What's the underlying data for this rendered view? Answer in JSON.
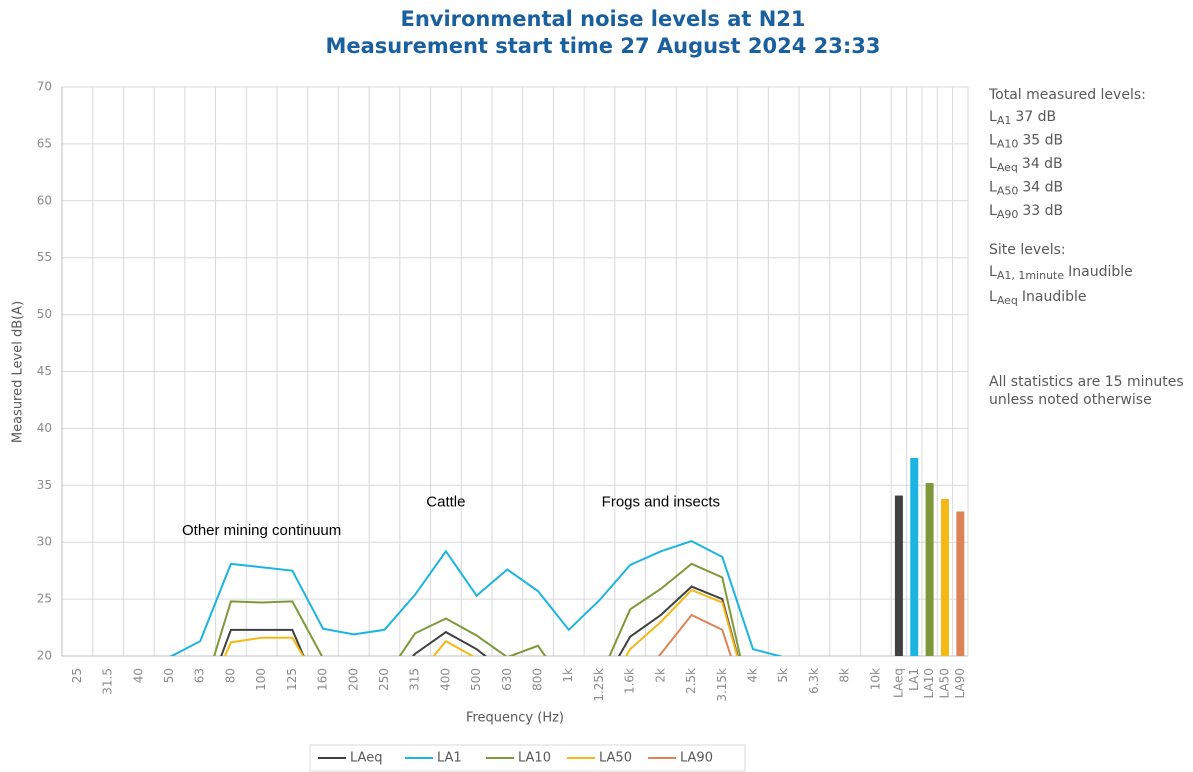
{
  "chart_data": {
    "type": "line",
    "title": [
      "Environmental noise levels at N21",
      "Measurement start time 27 August 2024 23:33"
    ],
    "xlabel": "Frequency (Hz)",
    "ylabel": "Measured Level dB(A)",
    "categories": [
      "25",
      "31.5",
      "40",
      "50",
      "63",
      "80",
      "100",
      "125",
      "160",
      "200",
      "250",
      "315",
      "400",
      "500",
      "630",
      "800",
      "1k",
      "1.25k",
      "1.6k",
      "2k",
      "2.5k",
      "3.15k",
      "4k",
      "5k",
      "6.3k",
      "8k",
      "10k"
    ],
    "ylim": [
      20,
      70
    ],
    "yticks": [
      20,
      25,
      30,
      35,
      40,
      45,
      50,
      55,
      60,
      65,
      70
    ],
    "grid": true,
    "series": [
      {
        "name": "LAeq",
        "color": "#404040",
        "values": [
          null,
          null,
          null,
          null,
          15,
          22.3,
          22.3,
          22.3,
          16,
          null,
          17,
          20.2,
          22.1,
          20.6,
          18.5,
          null,
          null,
          17,
          21.7,
          23.6,
          26.1,
          25.0,
          15,
          null,
          null,
          null,
          null
        ]
      },
      {
        "name": "LA1",
        "color": "#1cb4e0",
        "values": [
          null,
          null,
          null,
          19.9,
          21.3,
          28.1,
          27.8,
          27.5,
          22.4,
          21.9,
          22.3,
          25.4,
          29.2,
          25.3,
          27.6,
          25.7,
          22.3,
          24.9,
          28.0,
          29.2,
          30.1,
          28.7,
          20.6,
          19.9,
          null,
          null,
          null
        ]
      },
      {
        "name": "LA10",
        "color": "#7f993a",
        "values": [
          null,
          null,
          null,
          null,
          16,
          24.8,
          24.7,
          24.8,
          19.8,
          null,
          18,
          22.0,
          23.3,
          21.8,
          19.9,
          20.9,
          17,
          18,
          24.1,
          25.9,
          28.1,
          26.9,
          15,
          null,
          null,
          null,
          null
        ]
      },
      {
        "name": "LA50",
        "color": "#f5b915",
        "values": [
          null,
          null,
          null,
          null,
          15,
          21.2,
          21.6,
          21.6,
          17,
          null,
          null,
          18,
          21.3,
          19.8,
          null,
          null,
          null,
          16,
          20.6,
          23.0,
          25.8,
          24.7,
          15,
          null,
          null,
          null,
          null
        ]
      },
      {
        "name": "LA90",
        "color": "#dc8458",
        "values": [
          null,
          null,
          null,
          null,
          null,
          null,
          null,
          null,
          null,
          null,
          null,
          null,
          null,
          null,
          null,
          null,
          null,
          null,
          17,
          20.2,
          23.6,
          22.3,
          14,
          null,
          null,
          null,
          null
        ]
      }
    ],
    "bars": {
      "categories": [
        "LAeq",
        "LA1",
        "LA10",
        "LA50",
        "LA90"
      ],
      "values": [
        34.1,
        37.4,
        35.2,
        33.8,
        32.7
      ],
      "colors": [
        "#404040",
        "#1cb4e0",
        "#7f993a",
        "#f5b915",
        "#dc8458"
      ]
    },
    "annotations": [
      {
        "text": "Other mining continuum",
        "x": "100",
        "y": 31
      },
      {
        "text": "Cattle",
        "x": "400",
        "y": 33.5
      },
      {
        "text": "Frogs and insects",
        "x": "2k",
        "y": 33.5
      }
    ],
    "notes": {
      "total_heading": "Total measured levels:",
      "total": [
        {
          "symbol": "L",
          "sub": "A1",
          "text": "37 dB"
        },
        {
          "symbol": "L",
          "sub": "A10",
          "text": "35 dB"
        },
        {
          "symbol": "L",
          "sub": "Aeq",
          "text": "34 dB"
        },
        {
          "symbol": "L",
          "sub": "A50",
          "text": "34 dB"
        },
        {
          "symbol": "L",
          "sub": "A90",
          "text": "33 dB"
        }
      ],
      "site_heading": "Site levels:",
      "site": [
        {
          "symbol": "L",
          "sub": "A1, 1minute",
          "text": "Inaudible"
        },
        {
          "symbol": "L",
          "sub": "Aeq",
          "text": "Inaudible"
        }
      ],
      "footnote": [
        "All statistics are 15 minutes",
        "unless noted otherwise"
      ]
    }
  }
}
